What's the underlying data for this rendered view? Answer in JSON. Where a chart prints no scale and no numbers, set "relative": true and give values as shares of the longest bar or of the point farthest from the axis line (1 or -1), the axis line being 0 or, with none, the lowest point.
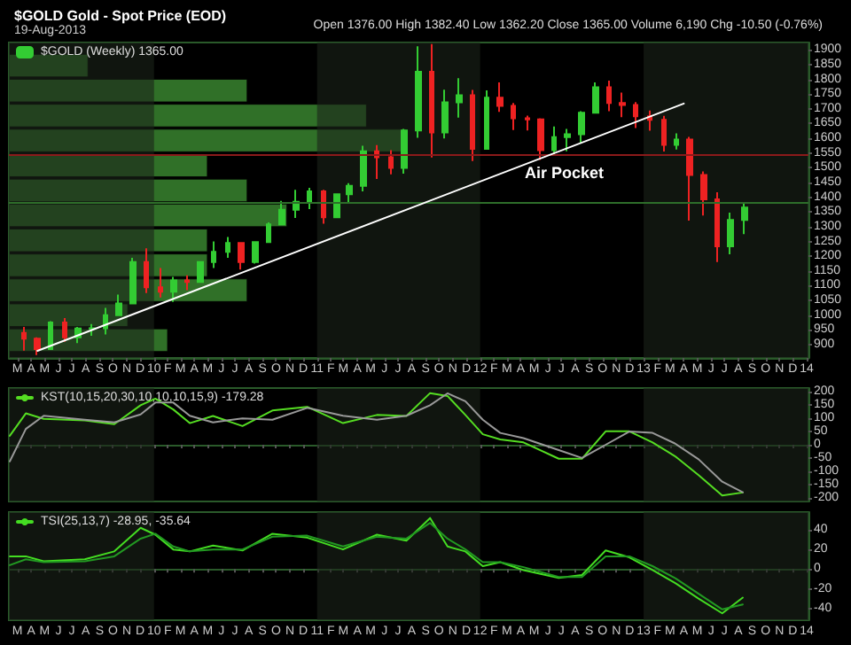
{
  "chart_data": [
    {
      "type": "candlestick",
      "title": "$GOLD Gold - Spot Price (EOD)",
      "subtitle": "19-Aug-2013",
      "annotations": [
        "Open 1376.00 High 1382.40 Low 1362.20 Close 1365.00 Volume 6,190 Chg -10.50 (-0.76%)",
        "Air Pocket"
      ],
      "legend": "top left",
      "tick_labels": true,
      "xlim": [
        "2009-02-10",
        "2014-01-05"
      ],
      "xticks": [
        {
          "value": "2009-03",
          "label": "M"
        },
        {
          "value": "2009-04",
          "label": "A"
        },
        {
          "value": "2009-05",
          "label": "M"
        },
        {
          "value": "2009-06",
          "label": "J"
        },
        {
          "value": "2009-07",
          "label": "J"
        },
        {
          "value": "2009-08",
          "label": "A"
        },
        {
          "value": "2009-09",
          "label": "S"
        },
        {
          "value": "2009-10",
          "label": "O"
        },
        {
          "value": "2009-11",
          "label": "N"
        },
        {
          "value": "2009-12",
          "label": "D"
        },
        {
          "value": "2010-01",
          "label": "10"
        },
        {
          "value": "2010-02",
          "label": "F"
        },
        {
          "value": "2010-03",
          "label": "M"
        },
        {
          "value": "2010-04",
          "label": "A"
        },
        {
          "value": "2010-05",
          "label": "M"
        },
        {
          "value": "2010-06",
          "label": "J"
        },
        {
          "value": "2010-07",
          "label": "J"
        },
        {
          "value": "2010-08",
          "label": "A"
        },
        {
          "value": "2010-09",
          "label": "S"
        },
        {
          "value": "2010-10",
          "label": "O"
        },
        {
          "value": "2010-11",
          "label": "N"
        },
        {
          "value": "2010-12",
          "label": "D"
        },
        {
          "value": "2011-01",
          "label": "11"
        },
        {
          "value": "2011-02",
          "label": "F"
        },
        {
          "value": "2011-03",
          "label": "M"
        },
        {
          "value": "2011-04",
          "label": "A"
        },
        {
          "value": "2011-05",
          "label": "M"
        },
        {
          "value": "2011-06",
          "label": "J"
        },
        {
          "value": "2011-07",
          "label": "J"
        },
        {
          "value": "2011-08",
          "label": "A"
        },
        {
          "value": "2011-09",
          "label": "S"
        },
        {
          "value": "2011-10",
          "label": "O"
        },
        {
          "value": "2011-11",
          "label": "N"
        },
        {
          "value": "2011-12",
          "label": "D"
        },
        {
          "value": "2012-01",
          "label": "12"
        },
        {
          "value": "2012-02",
          "label": "F"
        },
        {
          "value": "2012-03",
          "label": "M"
        },
        {
          "value": "2012-04",
          "label": "A"
        },
        {
          "value": "2012-05",
          "label": "M"
        },
        {
          "value": "2012-06",
          "label": "J"
        },
        {
          "value": "2012-07",
          "label": "J"
        },
        {
          "value": "2012-08",
          "label": "A"
        },
        {
          "value": "2012-09",
          "label": "S"
        },
        {
          "value": "2012-10",
          "label": "O"
        },
        {
          "value": "2012-11",
          "label": "N"
        },
        {
          "value": "2012-12",
          "label": "D"
        },
        {
          "value": "2013-01",
          "label": "13"
        },
        {
          "value": "2013-02",
          "label": "F"
        },
        {
          "value": "2013-03",
          "label": "M"
        },
        {
          "value": "2013-04",
          "label": "A"
        },
        {
          "value": "2013-05",
          "label": "M"
        },
        {
          "value": "2013-06",
          "label": "J"
        },
        {
          "value": "2013-07",
          "label": "J"
        },
        {
          "value": "2013-08",
          "label": "A"
        },
        {
          "value": "2013-09",
          "label": "S"
        },
        {
          "value": "2013-10",
          "label": "O"
        },
        {
          "value": "2013-11",
          "label": "N"
        },
        {
          "value": "2013-12",
          "label": "D"
        },
        {
          "value": "2014-01",
          "label": "14"
        }
      ],
      "ylim": [
        855,
        1925
      ],
      "yticks": [
        900,
        950,
        1000,
        1050,
        1100,
        1150,
        1200,
        1250,
        1300,
        1350,
        1400,
        1450,
        1500,
        1550,
        1600,
        1650,
        1700,
        1750,
        1800,
        1850,
        1900
      ],
      "bands": [
        {
          "axis": "x",
          "from": "2009-02-10",
          "to": "2010-01-01",
          "color": "#1a2319"
        },
        {
          "axis": "x",
          "from": "2011-01-01",
          "to": "2012-01-01",
          "color": "#1a2319"
        },
        {
          "axis": "x",
          "from": "2013-01-01",
          "to": "2014-01-05",
          "color": "#1a2319"
        }
      ],
      "ref_lines": [
        {
          "axis": "y",
          "value": 1545,
          "color": "#8b1a1a"
        },
        {
          "axis": "y",
          "value": 1380,
          "color": "#2e6e2a"
        }
      ],
      "series": [
        {
          "name": "$GOLD (Weekly) 1365.00",
          "color": "#33cc33",
          "x": [
            "2009-03-15",
            "2009-04-15",
            "2009-05-15",
            "2009-06-15",
            "2009-07-15",
            "2009-08-15",
            "2009-09-15",
            "2009-10-15",
            "2009-11-15",
            "2009-12-15",
            "2010-01-15",
            "2010-02-15",
            "2010-03-15",
            "2010-04-15",
            "2010-05-15",
            "2010-06-15",
            "2010-07-15",
            "2010-08-15",
            "2010-09-15",
            "2010-10-15",
            "2010-11-15",
            "2010-12-15",
            "2011-01-15",
            "2011-02-15",
            "2011-03-15",
            "2011-04-15",
            "2011-05-15",
            "2011-06-15",
            "2011-07-15",
            "2011-08-15",
            "2011-09-15",
            "2011-10-15",
            "2011-11-15",
            "2011-12-15",
            "2012-01-15",
            "2012-02-15",
            "2012-03-15",
            "2012-04-15",
            "2012-05-15",
            "2012-06-15",
            "2012-07-15",
            "2012-08-15",
            "2012-09-15",
            "2012-10-15",
            "2012-11-15",
            "2012-12-15",
            "2013-01-15",
            "2013-02-15",
            "2013-03-15",
            "2013-04-15",
            "2013-05-15",
            "2013-06-15",
            "2013-07-15",
            "2013-08-15"
          ],
          "ohlc": [
            [
              940,
              960,
              880,
              920
            ],
            [
              920,
              925,
              865,
              885
            ],
            [
              885,
              980,
              885,
              975
            ],
            [
              975,
              990,
              910,
              925
            ],
            [
              925,
              960,
              905,
              955
            ],
            [
              955,
              970,
              930,
              956
            ],
            [
              956,
              1025,
              935,
              1000
            ],
            [
              1000,
              1070,
              1000,
              1040
            ],
            [
              1040,
              1195,
              1040,
              1180
            ],
            [
              1180,
              1227,
              1075,
              1095
            ],
            [
              1095,
              1160,
              1060,
              1080
            ],
            [
              1080,
              1130,
              1045,
              1118
            ],
            [
              1118,
              1135,
              1085,
              1113
            ],
            [
              1113,
              1180,
              1110,
              1180
            ],
            [
              1180,
              1250,
              1160,
              1215
            ],
            [
              1215,
              1265,
              1195,
              1245
            ],
            [
              1245,
              1245,
              1155,
              1180
            ],
            [
              1180,
              1250,
              1175,
              1248
            ],
            [
              1248,
              1315,
              1245,
              1308
            ],
            [
              1308,
              1388,
              1308,
              1358
            ],
            [
              1358,
              1425,
              1330,
              1385
            ],
            [
              1385,
              1432,
              1360,
              1420
            ],
            [
              1420,
              1425,
              1310,
              1332
            ],
            [
              1332,
              1412,
              1330,
              1410
            ],
            [
              1410,
              1448,
              1380,
              1439
            ],
            [
              1439,
              1575,
              1420,
              1556
            ],
            [
              1556,
              1577,
              1462,
              1536
            ],
            [
              1536,
              1560,
              1478,
              1500
            ],
            [
              1500,
              1632,
              1480,
              1627
            ],
            [
              1627,
              1912,
              1602,
              1826
            ],
            [
              1826,
              1920,
              1535,
              1620
            ],
            [
              1620,
              1765,
              1600,
              1722
            ],
            [
              1722,
              1804,
              1670,
              1746
            ],
            [
              1746,
              1764,
              1523,
              1564
            ],
            [
              1564,
              1763,
              1563,
              1738
            ],
            [
              1738,
              1790,
              1690,
              1710
            ],
            [
              1710,
              1720,
              1628,
              1668
            ],
            [
              1668,
              1677,
              1627,
              1664
            ],
            [
              1664,
              1668,
              1527,
              1560
            ],
            [
              1560,
              1640,
              1540,
              1604
            ],
            [
              1604,
              1632,
              1556,
              1614
            ],
            [
              1614,
              1692,
              1583,
              1687
            ],
            [
              1687,
              1790,
              1686,
              1773
            ],
            [
              1773,
              1796,
              1692,
              1720
            ],
            [
              1720,
              1755,
              1672,
              1713
            ],
            [
              1713,
              1723,
              1635,
              1675
            ],
            [
              1675,
              1694,
              1626,
              1663
            ],
            [
              1663,
              1676,
              1555,
              1578
            ],
            [
              1578,
              1617,
              1562,
              1596
            ],
            [
              1596,
              1605,
              1321,
              1476
            ],
            [
              1476,
              1488,
              1338,
              1393
            ],
            [
              1393,
              1417,
              1180,
              1234
            ],
            [
              1234,
              1348,
              1207,
              1323
            ],
            [
              1323,
              1382,
              1275,
              1365
            ]
          ],
          "colors": [
            "#ee2222",
            "#ee2222",
            "#33cc33",
            "#ee2222",
            "#33cc33",
            "#33cc33",
            "#33cc33",
            "#33cc33",
            "#33cc33",
            "#ee2222",
            "#ee2222",
            "#33cc33",
            "#ee2222",
            "#33cc33",
            "#33cc33",
            "#33cc33",
            "#ee2222",
            "#33cc33",
            "#33cc33",
            "#33cc33",
            "#33cc33",
            "#33cc33",
            "#ee2222",
            "#33cc33",
            "#33cc33",
            "#33cc33",
            "#ee2222",
            "#ee2222",
            "#33cc33",
            "#33cc33",
            "#ee2222",
            "#33cc33",
            "#33cc33",
            "#ee2222",
            "#33cc33",
            "#ee2222",
            "#ee2222",
            "#ee2222",
            "#ee2222",
            "#33cc33",
            "#33cc33",
            "#33cc33",
            "#33cc33",
            "#ee2222",
            "#ee2222",
            "#ee2222",
            "#ee2222",
            "#ee2222",
            "#33cc33",
            "#ee2222",
            "#ee2222",
            "#ee2222",
            "#33cc33",
            "#33cc33"
          ]
        },
        {
          "type": "line",
          "color": "#ffffff",
          "x": [
            "2009-04-15",
            "2013-04-01"
          ],
          "values": [
            879,
            1718
          ]
        }
      ]
    },
    {
      "type": "bar",
      "orientation": "horizontal",
      "relative": true,
      "tick_labels": false,
      "color": "#3c8c32",
      "categories": [
        null,
        null,
        null,
        null,
        null,
        null,
        null,
        null,
        null,
        null,
        null,
        null
      ],
      "values": [
        0.2,
        0.6,
        0.9,
        1,
        0.5,
        0.6,
        0.7,
        0.5,
        0.5,
        0.6,
        0.3,
        0.4
      ]
    },
    {
      "type": "line",
      "legend": "top left",
      "tick_labels": "y",
      "marker": "none",
      "line_style": "solid",
      "xlim": [
        "2009-02-10",
        "2014-01-05"
      ],
      "xticks": [
        "2009-03",
        "2009-04",
        "2009-05",
        "2009-06",
        "2009-07",
        "2009-08",
        "2009-09",
        "2009-10",
        "2009-11",
        "2009-12",
        "2010-01",
        "2010-02",
        "2010-03",
        "2010-04",
        "2010-05",
        "2010-06",
        "2010-07",
        "2010-08",
        "2010-09",
        "2010-10",
        "2010-11",
        "2010-12",
        "2011-01",
        "2011-02",
        "2011-03",
        "2011-04",
        "2011-05",
        "2011-06",
        "2011-07",
        "2011-08",
        "2011-09",
        "2011-10",
        "2011-11",
        "2011-12",
        "2012-01",
        "2012-02",
        "2012-03",
        "2012-04",
        "2012-05",
        "2012-06",
        "2012-07",
        "2012-08",
        "2012-09",
        "2012-10",
        "2012-11",
        "2012-12",
        "2013-01",
        "2013-02",
        "2013-03",
        "2013-04",
        "2013-05",
        "2013-06",
        "2013-07",
        "2013-08",
        "2013-09",
        "2013-10",
        "2013-11",
        "2013-12",
        "2014-01"
      ],
      "ylim": [
        -215,
        215
      ],
      "yticks": [
        -200,
        -150,
        -100,
        -50,
        0,
        50,
        100,
        150,
        200
      ],
      "bands": [
        {
          "axis": "x",
          "from": "2009-02-10",
          "to": "2010-01-01",
          "color": "#1a2319"
        },
        {
          "axis": "x",
          "from": "2011-01-01",
          "to": "2012-01-01",
          "color": "#1a2319"
        },
        {
          "axis": "x",
          "from": "2013-01-01",
          "to": "2014-01-05",
          "color": "#1a2319"
        }
      ],
      "x": [
        "2009-02-12",
        "2009-03-20",
        "2009-04-29",
        "2009-07-30",
        "2009-10-04",
        "2009-12-02",
        "2010-01-04",
        "2010-02-13",
        "2010-03-22",
        "2010-05-13",
        "2010-07-18",
        "2010-09-23",
        "2010-12-10",
        "2011-02-28",
        "2011-05-15",
        "2011-07-20",
        "2011-09-11",
        "2011-10-20",
        "2011-11-29",
        "2012-01-07",
        "2012-02-15",
        "2012-04-07",
        "2012-06-25",
        "2012-08-16",
        "2012-10-08",
        "2012-11-30",
        "2013-01-21",
        "2013-03-12",
        "2013-05-04",
        "2013-06-26",
        "2013-08-11"
      ],
      "series": [
        {
          "name": "KST(10,15,20,30,10,10,10,15,9) -179.28",
          "color": "#55dd22",
          "values": [
            34,
            119,
            98,
            92,
            78,
            150,
            175,
            134,
            82,
            109,
            71,
            130,
            144,
            82,
            113,
            109,
            196,
            185,
            113,
            40,
            20,
            9,
            -53,
            -53,
            51,
            51,
            9,
            -43,
            -115,
            -192,
            -181
          ]
        },
        {
          "color": "#999999",
          "values": [
            -63,
            60,
            110,
            95,
            85,
            115,
            160,
            160,
            110,
            85,
            100,
            95,
            140,
            110,
            95,
            110,
            150,
            195,
            165,
            95,
            45,
            25,
            -20,
            -50,
            0,
            50,
            45,
            5,
            -55,
            -140,
            -180
          ]
        }
      ]
    },
    {
      "type": "line",
      "legend": "top left",
      "tick_labels": true,
      "marker": "none",
      "line_style": "solid",
      "xlim": [
        "2009-02-10",
        "2014-01-05"
      ],
      "xticks": [
        {
          "value": "2009-03",
          "label": "M"
        },
        {
          "value": "2009-04",
          "label": "A"
        },
        {
          "value": "2009-05",
          "label": "M"
        },
        {
          "value": "2009-06",
          "label": "J"
        },
        {
          "value": "2009-07",
          "label": "J"
        },
        {
          "value": "2009-08",
          "label": "A"
        },
        {
          "value": "2009-09",
          "label": "S"
        },
        {
          "value": "2009-10",
          "label": "O"
        },
        {
          "value": "2009-11",
          "label": "N"
        },
        {
          "value": "2009-12",
          "label": "D"
        },
        {
          "value": "2010-01",
          "label": "10"
        },
        {
          "value": "2010-02",
          "label": "F"
        },
        {
          "value": "2010-03",
          "label": "M"
        },
        {
          "value": "2010-04",
          "label": "A"
        },
        {
          "value": "2010-05",
          "label": "M"
        },
        {
          "value": "2010-06",
          "label": "J"
        },
        {
          "value": "2010-07",
          "label": "J"
        },
        {
          "value": "2010-08",
          "label": "A"
        },
        {
          "value": "2010-09",
          "label": "S"
        },
        {
          "value": "2010-10",
          "label": "O"
        },
        {
          "value": "2010-11",
          "label": "N"
        },
        {
          "value": "2010-12",
          "label": "D"
        },
        {
          "value": "2011-01",
          "label": "11"
        },
        {
          "value": "2011-02",
          "label": "F"
        },
        {
          "value": "2011-03",
          "label": "M"
        },
        {
          "value": "2011-04",
          "label": "A"
        },
        {
          "value": "2011-05",
          "label": "M"
        },
        {
          "value": "2011-06",
          "label": "J"
        },
        {
          "value": "2011-07",
          "label": "J"
        },
        {
          "value": "2011-08",
          "label": "A"
        },
        {
          "value": "2011-09",
          "label": "S"
        },
        {
          "value": "2011-10",
          "label": "O"
        },
        {
          "value": "2011-11",
          "label": "N"
        },
        {
          "value": "2011-12",
          "label": "D"
        },
        {
          "value": "2012-01",
          "label": "12"
        },
        {
          "value": "2012-02",
          "label": "F"
        },
        {
          "value": "2012-03",
          "label": "M"
        },
        {
          "value": "2012-04",
          "label": "A"
        },
        {
          "value": "2012-05",
          "label": "M"
        },
        {
          "value": "2012-06",
          "label": "J"
        },
        {
          "value": "2012-07",
          "label": "J"
        },
        {
          "value": "2012-08",
          "label": "A"
        },
        {
          "value": "2012-09",
          "label": "S"
        },
        {
          "value": "2012-10",
          "label": "O"
        },
        {
          "value": "2012-11",
          "label": "N"
        },
        {
          "value": "2012-12",
          "label": "D"
        },
        {
          "value": "2013-01",
          "label": "13"
        },
        {
          "value": "2013-02",
          "label": "F"
        },
        {
          "value": "2013-03",
          "label": "M"
        },
        {
          "value": "2013-04",
          "label": "A"
        },
        {
          "value": "2013-05",
          "label": "M"
        },
        {
          "value": "2013-06",
          "label": "J"
        },
        {
          "value": "2013-07",
          "label": "J"
        },
        {
          "value": "2013-08",
          "label": "A"
        },
        {
          "value": "2013-09",
          "label": "S"
        },
        {
          "value": "2013-10",
          "label": "O"
        },
        {
          "value": "2013-11",
          "label": "N"
        },
        {
          "value": "2013-12",
          "label": "D"
        },
        {
          "value": "2014-01",
          "label": "14"
        }
      ],
      "ylim": [
        -52,
        58
      ],
      "yticks": [
        -40,
        -20,
        0,
        20,
        40
      ],
      "bands": [
        {
          "axis": "x",
          "from": "2009-02-10",
          "to": "2010-01-01",
          "color": "#1a2319"
        },
        {
          "axis": "x",
          "from": "2011-01-01",
          "to": "2012-01-01",
          "color": "#1a2319"
        },
        {
          "axis": "x",
          "from": "2013-01-01",
          "to": "2014-01-05",
          "color": "#1a2319"
        }
      ],
      "x": [
        "2009-02-12",
        "2009-03-20",
        "2009-04-29",
        "2009-07-30",
        "2009-10-04",
        "2009-12-02",
        "2010-01-04",
        "2010-02-13",
        "2010-03-22",
        "2010-05-13",
        "2010-07-18",
        "2010-09-23",
        "2010-12-10",
        "2011-02-28",
        "2011-05-15",
        "2011-07-20",
        "2011-09-11",
        "2011-10-20",
        "2011-11-29",
        "2012-01-07",
        "2012-02-15",
        "2012-04-07",
        "2012-06-25",
        "2012-08-16",
        "2012-10-08",
        "2012-11-30",
        "2013-01-21",
        "2013-03-12",
        "2013-05-04",
        "2013-06-26",
        "2013-08-11"
      ],
      "series": [
        {
          "name": "TSI(25,13,7) -28.95, -35.64",
          "color": "#44dd22",
          "values": [
            13,
            13,
            8,
            10,
            18,
            42,
            35,
            20,
            18,
            24,
            19,
            36,
            32,
            20,
            35,
            29,
            52,
            23,
            18,
            3,
            7,
            -1,
            -9,
            -6,
            19,
            12,
            -1,
            -14,
            -30,
            -45,
            -29
          ]
        },
        {
          "color": "#229922",
          "values": [
            4,
            10,
            7,
            8,
            13,
            31,
            36,
            23,
            18,
            20,
            20,
            33,
            34,
            23,
            33,
            31,
            47,
            31,
            20,
            7,
            7,
            2,
            -8,
            -8,
            13,
            13,
            3,
            -9,
            -25,
            -41,
            -36
          ]
        }
      ]
    }
  ]
}
